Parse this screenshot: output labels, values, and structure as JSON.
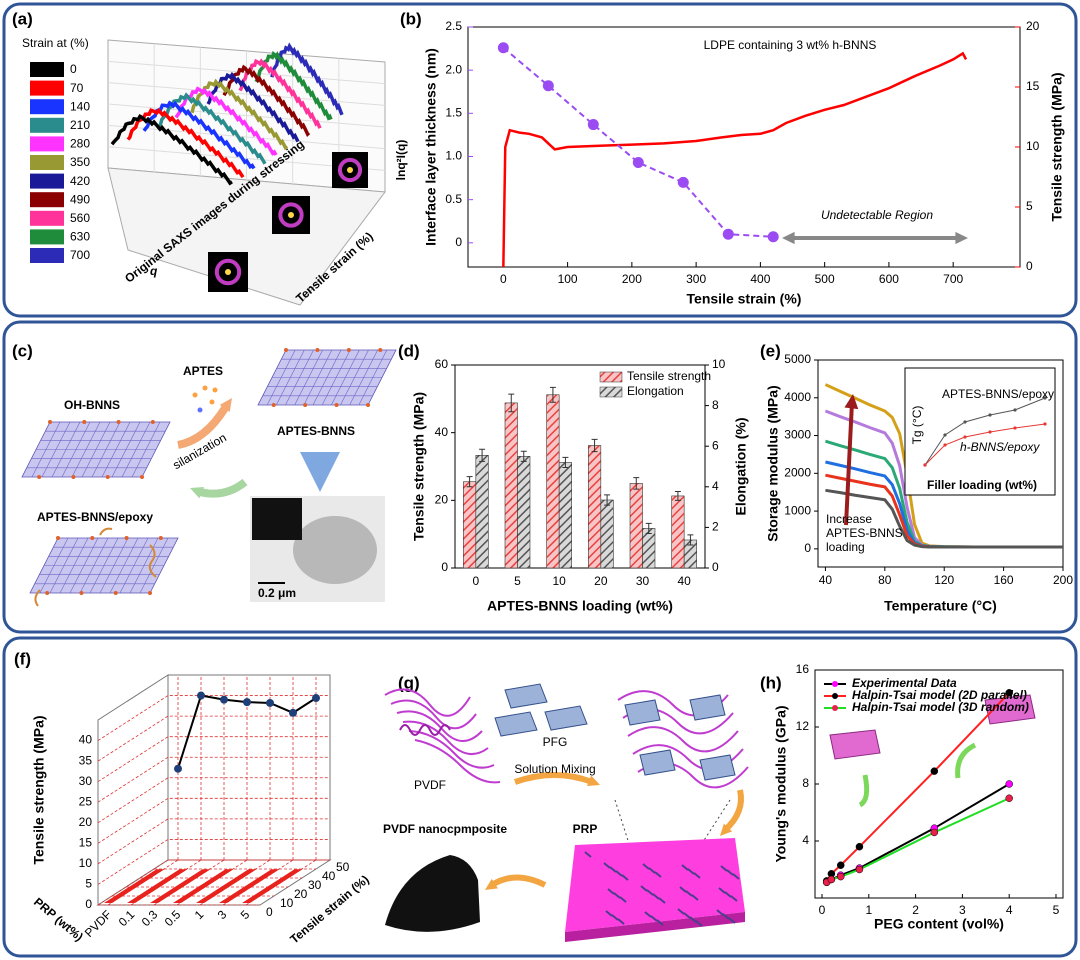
{
  "chart_data": [
    {
      "type": "saxs3d",
      "panel": "(a)",
      "legend_title": "Strain at (%)",
      "ylabel": "lnq²I(q)",
      "xlabel": "q",
      "zlabel": "Tensile strain (%)",
      "annotation": "Original SAXS images during stressing",
      "series": [
        {
          "name": "0",
          "color": "#000000"
        },
        {
          "name": "70",
          "color": "#ff0000"
        },
        {
          "name": "140",
          "color": "#1a34ff"
        },
        {
          "name": "210",
          "color": "#2a8c8c"
        },
        {
          "name": "280",
          "color": "#ff33ff"
        },
        {
          "name": "350",
          "color": "#999933"
        },
        {
          "name": "420",
          "color": "#1a1a99"
        },
        {
          "name": "490",
          "color": "#8b0000"
        },
        {
          "name": "560",
          "color": "#ff3399"
        },
        {
          "name": "630",
          "color": "#1e8c3a"
        },
        {
          "name": "700",
          "color": "#2b2bb8"
        }
      ]
    },
    {
      "type": "dual-line",
      "panel": "(b)",
      "annotation": "LDPE containing 3 wt% h-BNNS",
      "region_label": "Undetectable Region",
      "xlabel": "Tensile strain (%)",
      "ylabel": "Interface layer thickness (nm)",
      "y2label": "Tensile strength (MPa)",
      "xlim": [
        -55,
        804
      ],
      "xticks": [
        0,
        100,
        200,
        300,
        400,
        500,
        600,
        700
      ],
      "ylim": [
        -0.28,
        2.5
      ],
      "yticks": [
        0,
        0.5,
        {
          "value": 1,
          "label": "1.0"
        },
        1.5,
        {
          "value": 2,
          "label": "2.0"
        },
        2.5
      ],
      "y2lim": [
        0,
        20
      ],
      "y2ticks": [
        0,
        5,
        10,
        15,
        20
      ],
      "series": [
        {
          "color": "#9a4cf2",
          "x": [
            0,
            70,
            140,
            210,
            280,
            350,
            420
          ],
          "values": [
            2.26,
            1.82,
            1.37,
            0.93,
            0.7,
            0.1,
            0.07
          ]
        },
        {
          "color": "#ff0000",
          "axis": "y2",
          "x": [
            0,
            3,
            10,
            25,
            40,
            60,
            70,
            80,
            100,
            150,
            200,
            250,
            300,
            340,
            370,
            400,
            420,
            440,
            470,
            500,
            530,
            560,
            600,
            640,
            680,
            700,
            715,
            720
          ],
          "values": [
            0,
            10,
            11.4,
            11.2,
            11.1,
            10.8,
            10.3,
            9.8,
            10,
            10.1,
            10.2,
            10.3,
            10.5,
            10.8,
            11,
            11.1,
            11.4,
            12,
            12.6,
            13.1,
            13.5,
            14.1,
            14.9,
            15.9,
            16.8,
            17.3,
            17.8,
            17.3
          ]
        }
      ]
    },
    {
      "type": "bar-dual",
      "panel": "(d)",
      "categories": [
        "0",
        "5",
        "10",
        "20",
        "30",
        "40"
      ],
      "xlabel": "APTES-BNNS loading (wt%)",
      "ylabel": "Tensile strength (MPa)",
      "y2label": "Elongation (%)",
      "ylim": [
        0,
        60
      ],
      "yticks": [
        0,
        20,
        40,
        60
      ],
      "y2lim": [
        0,
        10
      ],
      "y2ticks": [
        0,
        2,
        4,
        6,
        8,
        10
      ],
      "series": [
        {
          "name": "Tensile strength",
          "color": "#e8413f",
          "values": [
            25.5,
            48.8,
            51.2,
            36.2,
            25,
            21.3
          ],
          "errors": [
            1.5,
            2.6,
            2.2,
            1.8,
            1.7,
            1.3
          ]
        },
        {
          "name": "Elongation",
          "color": "#555555",
          "axis": "y2",
          "values": [
            5.55,
            5.5,
            5.2,
            3.35,
            1.95,
            1.38
          ],
          "errors": [
            0.3,
            0.25,
            0.25,
            0.25,
            0.25,
            0.25
          ]
        }
      ]
    },
    {
      "type": "line",
      "panel": "(e)",
      "xlabel": "Temperature (°C)",
      "ylabel": "Storage modulus (MPa)",
      "annotation": [
        "Increase",
        "APTES-BNNS",
        "loading"
      ],
      "xlim": [
        35,
        200
      ],
      "xticks": [
        40,
        80,
        120,
        160,
        200
      ],
      "ylim": [
        -480,
        5000
      ],
      "yticks": [
        0,
        1000,
        2000,
        3000,
        4000,
        5000
      ],
      "x": [
        40,
        50,
        60,
        70,
        80,
        85,
        90,
        95,
        100,
        105,
        110,
        120,
        140,
        160,
        180,
        200
      ],
      "series": [
        {
          "color": "#d4a017",
          "values": [
            4350,
            4170,
            3990,
            3810,
            3650,
            3480,
            3050,
            1960,
            650,
            150,
            80,
            60,
            50,
            50,
            50,
            50
          ]
        },
        {
          "color": "#b57bdc",
          "values": [
            3650,
            3500,
            3360,
            3210,
            3070,
            2800,
            2200,
            1100,
            300,
            100,
            70,
            55,
            50,
            50,
            50,
            50
          ]
        },
        {
          "color": "#2aa876",
          "values": [
            2850,
            2730,
            2620,
            2500,
            2390,
            2150,
            1600,
            700,
            200,
            90,
            65,
            55,
            50,
            50,
            50,
            50
          ]
        },
        {
          "color": "#1f6fe0",
          "values": [
            2300,
            2210,
            2120,
            2020,
            1930,
            1700,
            1200,
            500,
            160,
            80,
            60,
            50,
            50,
            50,
            50,
            50
          ]
        },
        {
          "color": "#e8341c",
          "values": [
            1950,
            1870,
            1790,
            1710,
            1640,
            1400,
            900,
            350,
            130,
            70,
            55,
            50,
            50,
            50,
            50,
            50
          ]
        },
        {
          "color": "#555555",
          "values": [
            1550,
            1490,
            1420,
            1360,
            1300,
            1050,
            600,
            220,
            100,
            60,
            50,
            50,
            50,
            50,
            50,
            50
          ]
        }
      ],
      "inset": {
        "ylabel": "Tg (°C)",
        "xlabel": "Filler loading (wt%)",
        "labels": [
          {
            "text": "APTES-BNNS/epoxy",
            "color": "#555555"
          },
          {
            "text": "h-BNNS/epoxy",
            "color": "#e53935"
          }
        ]
      }
    },
    {
      "type": "scatter3d",
      "panel": "(f)",
      "ylabel": "Tensile strength (MPa)",
      "xlabel": "PRP (wt%)",
      "zlabel": "Tensile strain (%)",
      "categories": [
        "PVDF",
        "0.1",
        "0.3",
        "0.5",
        "1",
        "3",
        "5"
      ],
      "values": [
        22.2,
        40,
        39,
        38.4,
        38.2,
        35.8,
        39.4
      ],
      "ylim": [
        0,
        45
      ],
      "yticks": [
        0,
        5,
        10,
        15,
        20,
        25,
        30,
        35,
        40
      ],
      "zlim": [
        0,
        50
      ],
      "zticks": [
        0,
        10,
        20,
        30,
        40,
        50
      ],
      "color": "#1f3f7a",
      "line_color": "#000000",
      "grid_color": "#e03030"
    },
    {
      "type": "scatter-line",
      "panel": "(h)",
      "xlabel": "PEG content (vol%)",
      "ylabel": "Young's modulus (GPa)",
      "xlim": [
        -0.15,
        5.15
      ],
      "xticks": [
        0,
        1,
        2,
        3,
        4,
        5
      ],
      "ylim": [
        0,
        16
      ],
      "yticks": [
        4,
        8,
        12,
        16
      ],
      "series": [
        {
          "name": "Experimental Data",
          "color": "#000000",
          "marker_color": "#ff00ff",
          "x": [
            0.1,
            0.2,
            0.4,
            0.8,
            2.4,
            4
          ],
          "values": [
            1.1,
            1.3,
            1.6,
            2.1,
            4.9,
            8.0
          ]
        },
        {
          "name": "Halpin-Tsai model (2D parallel)",
          "color": "#ff2020",
          "marker_color": "#000000",
          "x": [
            0.1,
            0.2,
            0.4,
            0.8,
            2.4,
            4
          ],
          "values": [
            1.2,
            1.7,
            2.3,
            3.6,
            8.9,
            14.4
          ]
        },
        {
          "name": "Halpin-Tsai model (3D random)",
          "color": "#22dd22",
          "marker_color": "#e8204a",
          "x": [
            0.1,
            0.2,
            0.4,
            0.8,
            2.4,
            4
          ],
          "values": [
            1.1,
            1.3,
            1.5,
            2.0,
            4.6,
            7.0
          ]
        }
      ]
    }
  ],
  "diagrams": {
    "c": {
      "panel": "(c)",
      "oh_bnns": "OH-BNNS",
      "aptes": "APTES",
      "silanization": "silanization",
      "aptes_bnns": "APTES-BNNS",
      "aptes_bnns_epoxy": "APTES-BNNS/epoxy",
      "scale_bar": "0.2 μm"
    },
    "g": {
      "panel": "(g)",
      "pvdf": "PVDF",
      "pfg": "PFG",
      "mixing": "Solution Mixing",
      "prp": "PRP",
      "product": "PVDF nanocpmposite"
    }
  }
}
